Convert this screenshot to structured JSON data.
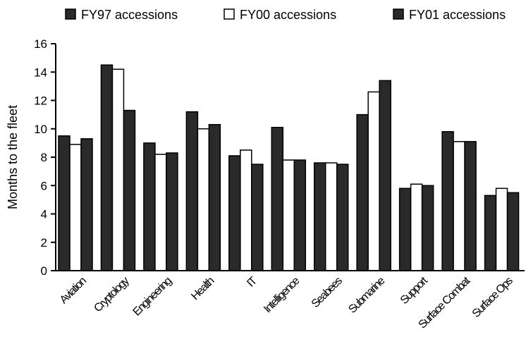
{
  "chart_data": {
    "type": "bar",
    "ylabel": "Months to the fleet",
    "ylim": [
      0,
      16
    ],
    "yticks": [
      0,
      2,
      4,
      6,
      8,
      10,
      12,
      14,
      16
    ],
    "grid": false,
    "legend_position": "top",
    "categories": [
      "Aviation",
      "Cryptology",
      "Engineering",
      "Health",
      "IT",
      "Intelligence",
      "Seabees",
      "Submarine",
      "Support",
      "Surface Combat",
      "Surface Ops"
    ],
    "series": [
      {
        "name": "FY97 accessions",
        "color": "#2a2a2a",
        "values": [
          9.5,
          14.5,
          9.0,
          11.2,
          8.1,
          10.1,
          7.6,
          11.0,
          5.8,
          9.8,
          5.3
        ]
      },
      {
        "name": "FY00 accessions",
        "color": "#ffffff",
        "values": [
          8.9,
          14.2,
          8.2,
          10.0,
          8.5,
          7.8,
          7.6,
          12.6,
          6.1,
          9.1,
          5.8
        ]
      },
      {
        "name": "FY01 accessions",
        "color": "#2a2a2a",
        "values": [
          9.3,
          11.3,
          8.3,
          10.3,
          7.5,
          7.8,
          7.5,
          13.4,
          6.0,
          9.1,
          5.5
        ]
      }
    ]
  }
}
